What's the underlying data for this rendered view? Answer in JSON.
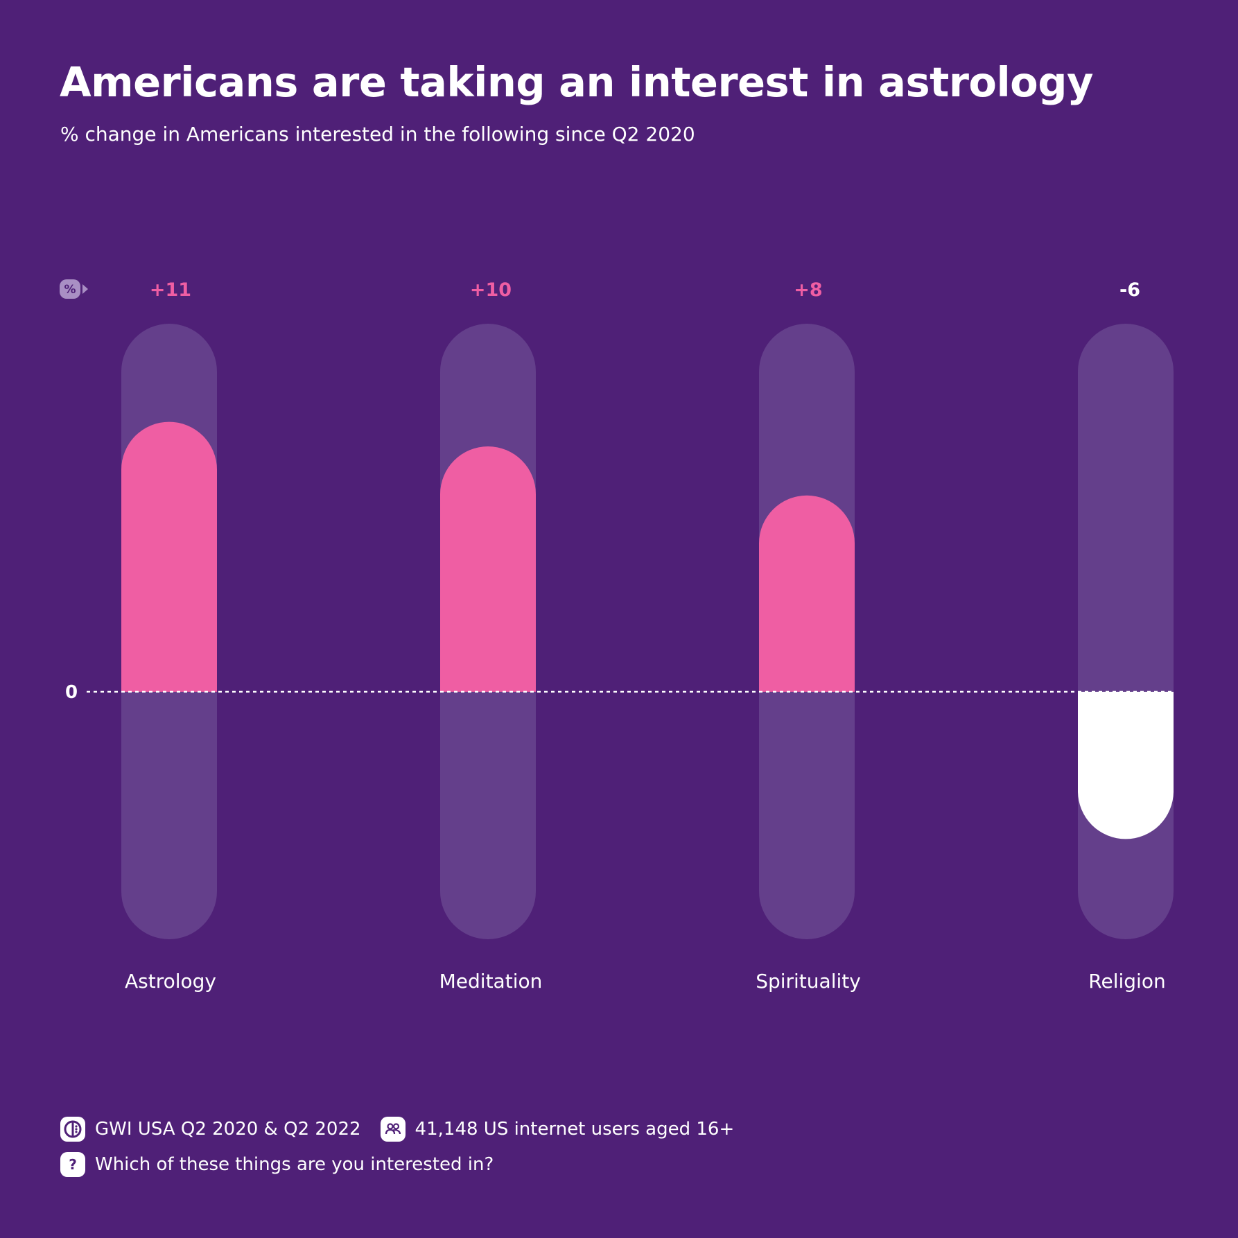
{
  "title": "Americans are taking an interest in astrology",
  "subtitle": "% change in Americans interested in the following since Q2 2020",
  "chart_data": {
    "type": "bar",
    "categories": [
      "Astrology",
      "Meditation",
      "Spirituality",
      "Religion"
    ],
    "values": [
      11,
      10,
      8,
      -6
    ],
    "value_labels": [
      "+11",
      "+10",
      "+8",
      "-6"
    ],
    "unit_badge": "%",
    "baseline_label": "0",
    "ylim": [
      -9,
      15
    ],
    "grid": false,
    "colors": {
      "positive": "#ef5ea3",
      "negative": "#ffffff",
      "track": "#643f8b",
      "background": "#4f2077"
    }
  },
  "footer": {
    "source": "GWI USA Q2 2020 & Q2 2022",
    "sample": "41,148 US internet users aged 16+",
    "question": "Which of these things are you interested in?",
    "icons": [
      "gwi-logo-icon",
      "people-icon",
      "question-icon"
    ]
  }
}
